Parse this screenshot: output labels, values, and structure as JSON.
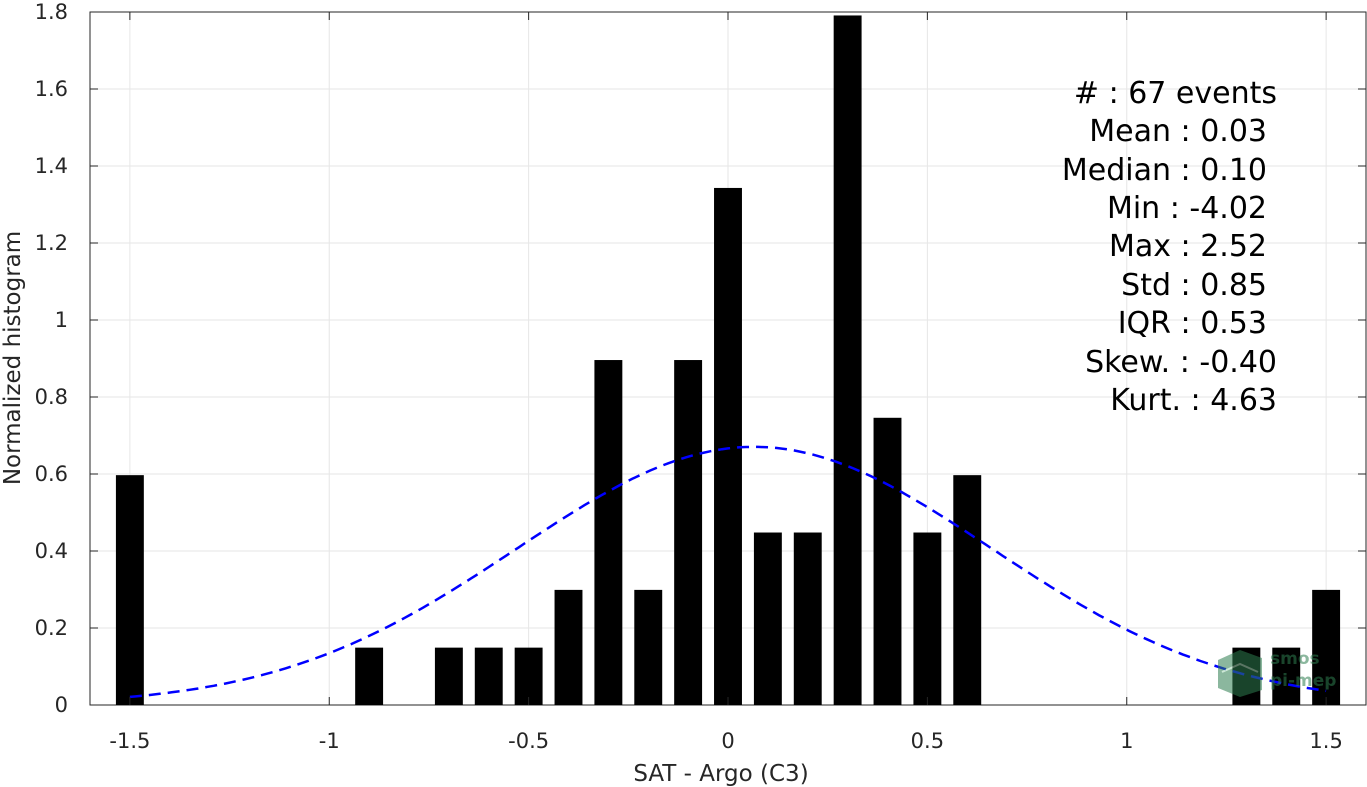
{
  "chart_data": {
    "type": "bar",
    "xlabel": "SAT - Argo (C3)",
    "ylabel": "Normalized histogram",
    "xlim": [
      -1.6,
      1.6
    ],
    "ylim": [
      0,
      1.8
    ],
    "xticks": [
      "-1.5",
      "-1",
      "-0.5",
      "0",
      "0.5",
      "1",
      "1.5"
    ],
    "yticks": [
      "0",
      "0.2",
      "0.4",
      "0.6",
      "0.8",
      "1",
      "1.2",
      "1.4",
      "1.6",
      "1.8"
    ],
    "grid": true,
    "bar_color": "#000000",
    "bar_width": 0.07,
    "bars": {
      "x": [
        -1.5,
        -0.9,
        -0.7,
        -0.6,
        -0.5,
        -0.4,
        -0.3,
        -0.2,
        -0.1,
        0.0,
        0.1,
        0.2,
        0.3,
        0.4,
        0.5,
        0.6,
        1.3,
        1.4,
        1.5
      ],
      "values": [
        0.597,
        0.149,
        0.149,
        0.149,
        0.149,
        0.299,
        0.896,
        0.299,
        0.896,
        1.343,
        0.448,
        0.448,
        1.791,
        0.746,
        0.448,
        0.597,
        0.149,
        0.149,
        0.299
      ]
    },
    "fit_curve": {
      "style": "dashed",
      "color": "#0000ff",
      "mean": 0.066,
      "std": 0.595,
      "x_range": [
        -1.5,
        1.5
      ]
    },
    "stats": [
      "#  : 67 events",
      "Mean : 0.03",
      "Median : 0.10",
      "Min : -4.02",
      "Max : 2.52",
      "Std : 0.85",
      "IQR : 0.53",
      "Skew. : -0.40",
      "Kurt. : 4.63"
    ]
  },
  "logo": {
    "line1": "smos",
    "line2": "pi-mep",
    "color": "#2e7d4f"
  }
}
